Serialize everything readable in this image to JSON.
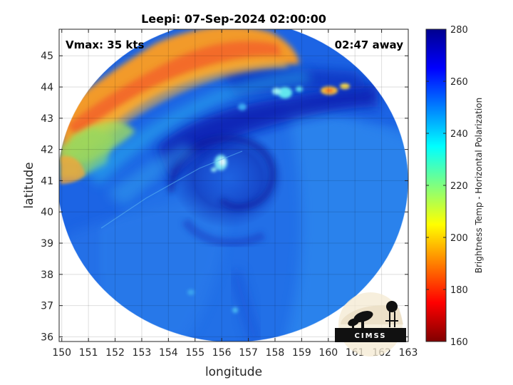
{
  "chart_data": {
    "type": "heatmap",
    "title": "Leepi: 07-Sep-2024 02:00:00",
    "xlabel": "longitude",
    "ylabel": "latitude",
    "xlim": [
      149.9,
      163.0
    ],
    "ylim": [
      35.85,
      45.85
    ],
    "x_ticks": [
      150,
      151,
      152,
      153,
      154,
      155,
      156,
      157,
      158,
      159,
      160,
      161,
      162,
      163
    ],
    "y_ticks": [
      36,
      37,
      38,
      39,
      40,
      41,
      42,
      43,
      44,
      45
    ],
    "grid": true,
    "annotations": {
      "vmax": "Vmax: 35 kts",
      "time_away": "02:47 away"
    },
    "colorbar": {
      "label": "Brightness Temp - Horizontal Polarization",
      "range": [
        160,
        280
      ],
      "ticks": [
        160,
        180,
        200,
        220,
        240,
        260,
        280
      ],
      "colormap": "jet"
    },
    "field": {
      "center": [
        156.45,
        40.85
      ],
      "radius_deg_lon": 6.45,
      "background_temp": 256,
      "features": [
        {
          "kind": "warm-band",
          "from": [
            150.2,
            43.5
          ],
          "to": [
            158.5,
            45.8
          ],
          "temp": 195
        },
        {
          "kind": "warm-patch",
          "center": [
            150.3,
            41.5
          ],
          "temp": 210
        },
        {
          "kind": "cold-spiral",
          "center": [
            156.0,
            41.0
          ],
          "temp": 266
        },
        {
          "kind": "cold-band",
          "from": [
            154.0,
            42.8
          ],
          "to": [
            160.5,
            44.6
          ],
          "temp": 268
        },
        {
          "kind": "warm-spots",
          "center": [
            160.3,
            43.9
          ],
          "temp": 215
        },
        {
          "kind": "warm-spots",
          "center": [
            155.8,
            41.9
          ],
          "temp": 235
        }
      ]
    }
  },
  "logo": {
    "text": "CIMSS"
  }
}
